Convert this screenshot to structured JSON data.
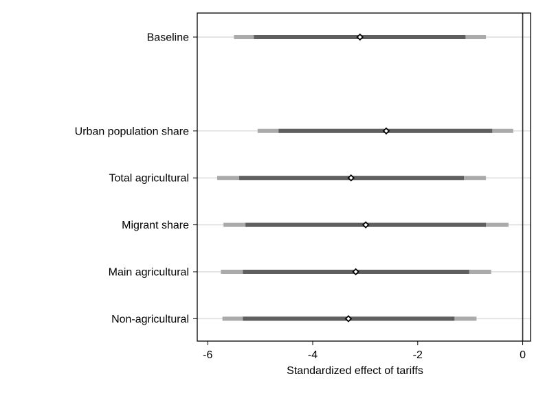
{
  "chart_data": {
    "type": "coefficient-plot",
    "xlabel": "Standardized effect of tariffs",
    "ylabel": "",
    "xlim": [
      -6.2,
      0.15
    ],
    "xticks": [
      -6,
      -4,
      -2,
      0
    ],
    "reference_line_x": 0,
    "grid": "horizontal lines at each estimate",
    "colors": {
      "ci_outer": "#aaaaaa",
      "ci_inner": "#5f5f5f",
      "gridline": "#dcdcdc",
      "axis": "#000000",
      "marker_fill": "#ffffff",
      "marker_stroke": "#000000"
    },
    "estimates": [
      {
        "label": "Baseline",
        "row": 0,
        "estimate": -3.1,
        "ci_inner": [
          -5.12,
          -1.09
        ],
        "ci_outer": [
          -5.5,
          -0.7
        ]
      },
      {
        "label": "Urban population share",
        "row": 2,
        "estimate": -2.6,
        "ci_inner": [
          -4.65,
          -0.58
        ],
        "ci_outer": [
          -5.05,
          -0.18
        ]
      },
      {
        "label": "Total agricultural",
        "row": 3,
        "estimate": -3.27,
        "ci_inner": [
          -5.4,
          -1.12
        ],
        "ci_outer": [
          -5.82,
          -0.7
        ]
      },
      {
        "label": "Migrant share",
        "row": 4,
        "estimate": -2.99,
        "ci_inner": [
          -5.28,
          -0.7
        ],
        "ci_outer": [
          -5.7,
          -0.27
        ]
      },
      {
        "label": "Main agricultural",
        "row": 5,
        "estimate": -3.18,
        "ci_inner": [
          -5.33,
          -1.02
        ],
        "ci_outer": [
          -5.75,
          -0.6
        ]
      },
      {
        "label": "Non-agricultural",
        "row": 6,
        "estimate": -3.32,
        "ci_inner": [
          -5.33,
          -1.3
        ],
        "ci_outer": [
          -5.72,
          -0.88
        ]
      }
    ]
  }
}
